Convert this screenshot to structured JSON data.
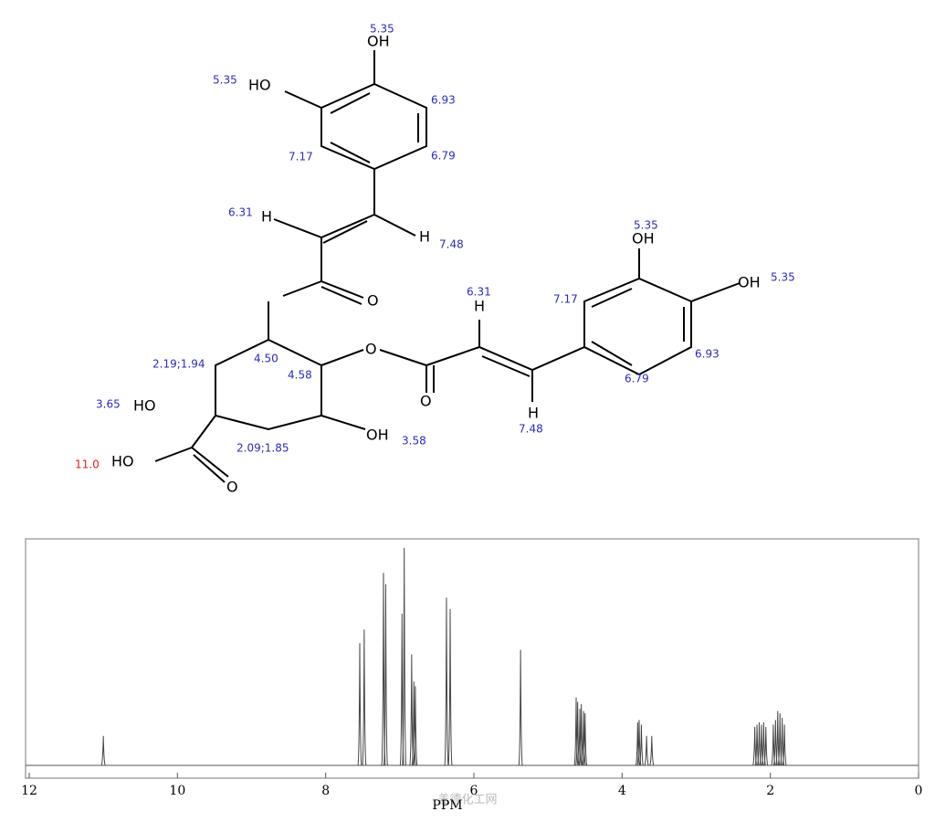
{
  "structure": {
    "labels": [
      "5.35",
      "OH",
      "5.35",
      "HO",
      "6.93",
      "7.17",
      "6.79",
      "6.31",
      "H",
      "H",
      "7.48",
      "O",
      "6.31",
      "H",
      "5.35",
      "OH",
      "7.17",
      "OH",
      "5.35",
      "4.50",
      "2.19;1.94",
      "4.58",
      "O",
      "6.93",
      "6.79",
      "3.65",
      "HO",
      "O",
      "H",
      "7.48",
      "OH",
      "3.58",
      "2.09;1.85",
      "11.0",
      "HO",
      "O"
    ]
  },
  "watermark": "盖德化工网",
  "chart_data": {
    "type": "spectrum",
    "x_label": "PPM",
    "xlim": [
      12,
      0
    ],
    "xticks": [
      12,
      10,
      8,
      6,
      4,
      2,
      0
    ],
    "ylim": [
      0,
      1
    ],
    "peaks": {
      "x": [
        11.0,
        7.54,
        7.48,
        7.22,
        7.19,
        6.97,
        6.94,
        6.84,
        6.81,
        6.79,
        6.37,
        6.32,
        5.37,
        4.62,
        4.6,
        4.57,
        4.55,
        4.52,
        4.5,
        3.79,
        3.77,
        3.74,
        3.67,
        3.6,
        2.21,
        2.18,
        2.15,
        2.12,
        2.09,
        2.06,
        1.96,
        1.93,
        1.9,
        1.87,
        1.84,
        1.81
      ],
      "values": [
        0.13,
        0.54,
        0.6,
        0.85,
        0.8,
        0.67,
        0.96,
        0.49,
        0.37,
        0.35,
        0.74,
        0.69,
        0.51,
        0.3,
        0.28,
        0.25,
        0.27,
        0.24,
        0.23,
        0.19,
        0.2,
        0.18,
        0.13,
        0.13,
        0.17,
        0.18,
        0.19,
        0.18,
        0.19,
        0.17,
        0.18,
        0.2,
        0.24,
        0.23,
        0.21,
        0.18
      ]
    }
  }
}
